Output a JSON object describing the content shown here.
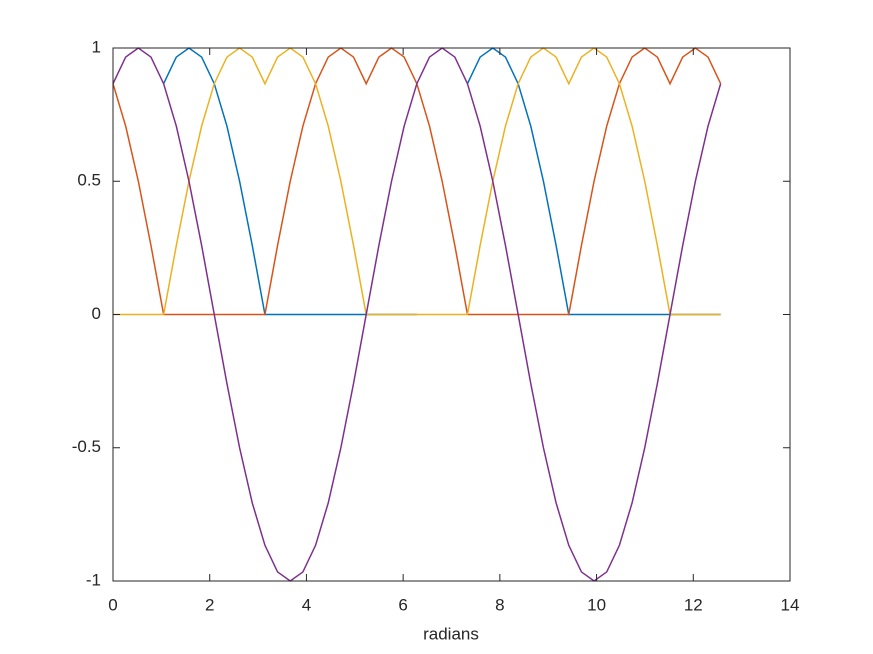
{
  "chart_data": {
    "type": "line",
    "x_label": "radians",
    "x": [
      0,
      0.262,
      0.524,
      0.785,
      1.047,
      1.309,
      1.571,
      1.833,
      2.094,
      2.356,
      2.618,
      2.88,
      3.142,
      3.403,
      3.665,
      3.927,
      4.189,
      4.451,
      4.712,
      4.974,
      5.236,
      5.498,
      5.76,
      6.021,
      6.283,
      6.545,
      6.807,
      7.069,
      7.33,
      7.592,
      7.854,
      8.116,
      8.378,
      8.639,
      8.901,
      9.163,
      9.425,
      9.687,
      9.948,
      10.21,
      10.472,
      10.734,
      10.996,
      11.257,
      11.519,
      11.781,
      12.043,
      12.305,
      12.566
    ],
    "series": [
      {
        "color": "#0072bd",
        "values": [
          null,
          null,
          null,
          null,
          0.866,
          0.966,
          1,
          0.966,
          0.866,
          0.707,
          0.5,
          0.259,
          0,
          0,
          0,
          0,
          0,
          0,
          0,
          0,
          0,
          0,
          0,
          0,
          0,
          null,
          null,
          null,
          0.866,
          0.966,
          1,
          0.966,
          0.866,
          0.707,
          0.5,
          0.259,
          0,
          0,
          0,
          0,
          0,
          0,
          0,
          0,
          0,
          0,
          0,
          0,
          0
        ]
      },
      {
        "color": "#d95319",
        "values": [
          0.866,
          0.707,
          0.5,
          0.259,
          0,
          0,
          0,
          0,
          0,
          0,
          0,
          0,
          0,
          0.259,
          0.5,
          0.707,
          0.866,
          0.966,
          1,
          0.966,
          0.866,
          0.966,
          1,
          0.966,
          0.866,
          0.707,
          0.5,
          0.259,
          0,
          0,
          0,
          0,
          0,
          0,
          0,
          0,
          0,
          0.259,
          0.5,
          0.707,
          0.866,
          0.966,
          1,
          0.966,
          0.866,
          0.966,
          1,
          0.966,
          0.866
        ]
      },
      {
        "color": "#edb120",
        "values": [
          0,
          0,
          0,
          0,
          0,
          0.259,
          0.5,
          0.707,
          0.866,
          0.966,
          1,
          0.966,
          0.866,
          0.966,
          1,
          0.966,
          0.866,
          0.707,
          0.5,
          0.259,
          0,
          0,
          0,
          0,
          0,
          0,
          0,
          0,
          0,
          0.259,
          0.5,
          0.707,
          0.866,
          0.966,
          1,
          0.966,
          0.866,
          0.966,
          1,
          0.966,
          0.866,
          0.707,
          0.5,
          0.259,
          0,
          0,
          0,
          0,
          0
        ]
      },
      {
        "color": "#7e2f8e",
        "values": [
          0.866,
          0.966,
          1,
          0.966,
          0.866,
          0.707,
          0.5,
          0.259,
          0,
          -0.259,
          -0.5,
          -0.707,
          -0.866,
          -0.966,
          -1,
          -0.966,
          -0.866,
          -0.707,
          -0.5,
          -0.259,
          0,
          0.259,
          0.5,
          0.707,
          0.866,
          0.966,
          1,
          0.966,
          0.866,
          0.707,
          0.5,
          0.259,
          0,
          -0.259,
          -0.5,
          -0.707,
          -0.866,
          -0.966,
          -1,
          -0.966,
          -0.866,
          -0.707,
          -0.5,
          -0.259,
          0,
          0.259,
          0.5,
          0.707,
          0.866
        ]
      }
    ],
    "xlim": [
      0,
      14
    ],
    "xticks": [
      0,
      2,
      4,
      6,
      8,
      10,
      12,
      14
    ],
    "ylim": [
      -1,
      1
    ],
    "yticks": [
      -1,
      -0.5,
      0,
      0.5,
      1
    ],
    "grid": false
  }
}
